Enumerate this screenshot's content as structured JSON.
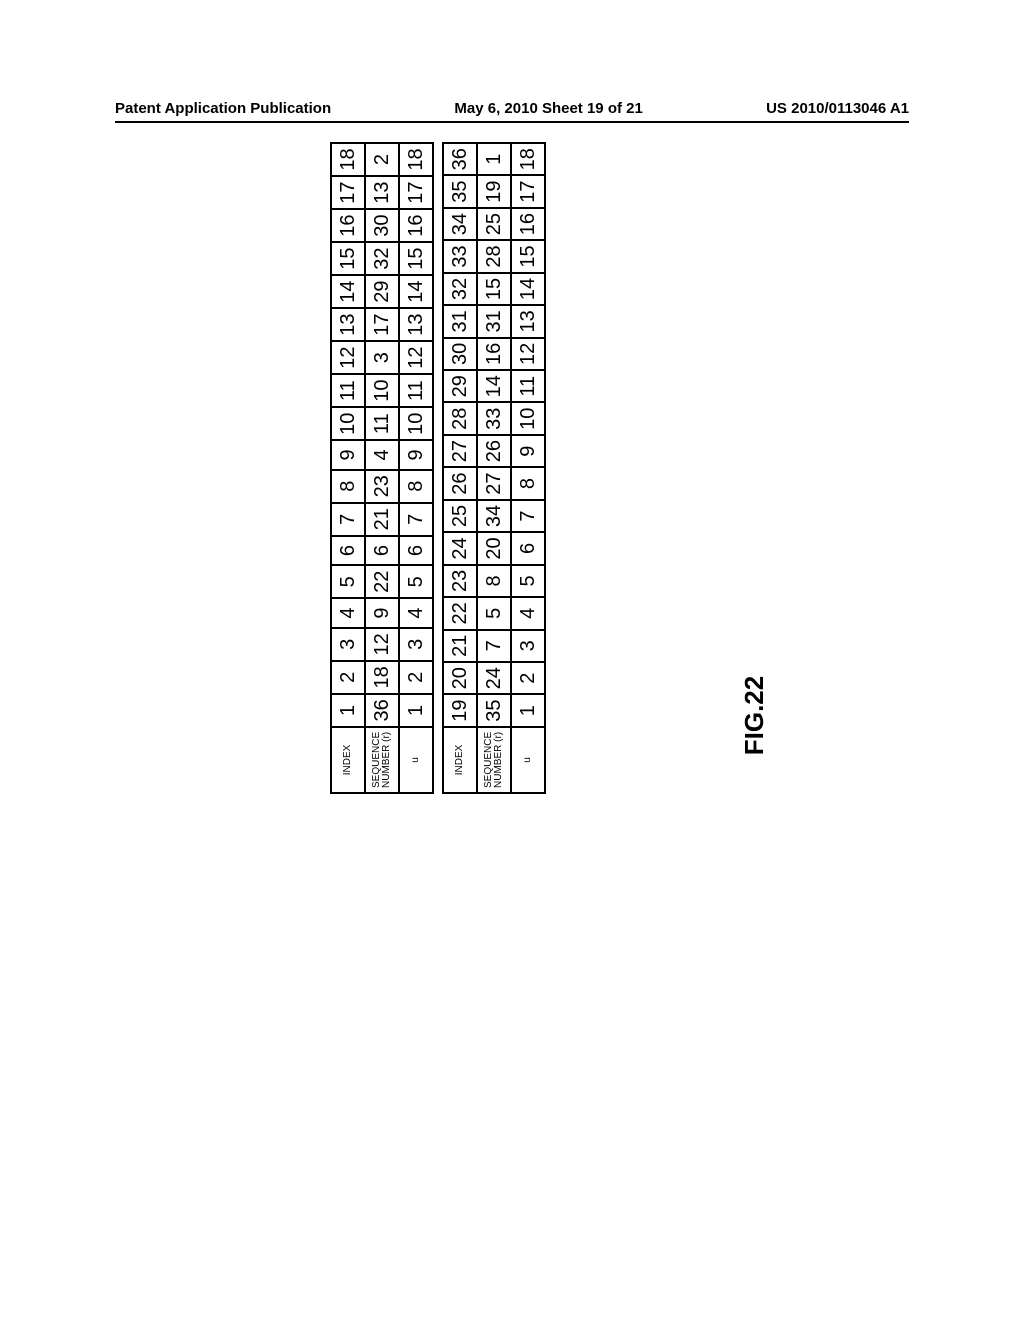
{
  "header": {
    "left": "Patent Application Publication",
    "center": "May 6, 2010  Sheet 19 of 21",
    "right": "US 2010/0113046 A1"
  },
  "figure_label": "FIG.22",
  "tables": {
    "col_headers": {
      "index": "INDEX",
      "seq": "SEQUENCE NUMBER (r)",
      "u": "u"
    },
    "left": {
      "index": [
        1,
        2,
        3,
        4,
        5,
        6,
        7,
        8,
        9,
        10,
        11,
        12,
        13,
        14,
        15,
        16,
        17,
        18
      ],
      "seq": [
        36,
        18,
        12,
        9,
        22,
        6,
        21,
        23,
        4,
        11,
        10,
        3,
        17,
        29,
        32,
        30,
        13,
        2
      ],
      "u": [
        1,
        2,
        3,
        4,
        5,
        6,
        7,
        8,
        9,
        10,
        11,
        12,
        13,
        14,
        15,
        16,
        17,
        18
      ]
    },
    "right": {
      "index": [
        19,
        20,
        21,
        22,
        23,
        24,
        25,
        26,
        27,
        28,
        29,
        30,
        31,
        32,
        33,
        34,
        35,
        36
      ],
      "seq": [
        35,
        24,
        7,
        5,
        8,
        20,
        34,
        27,
        26,
        33,
        14,
        16,
        31,
        15,
        28,
        25,
        19,
        1
      ],
      "u": [
        1,
        2,
        3,
        4,
        5,
        6,
        7,
        8,
        9,
        10,
        11,
        12,
        13,
        14,
        15,
        16,
        17,
        18
      ]
    },
    "cell_fontsize": 20,
    "header_fontsize": 10,
    "border_color": "#000000",
    "background": "#ffffff"
  }
}
